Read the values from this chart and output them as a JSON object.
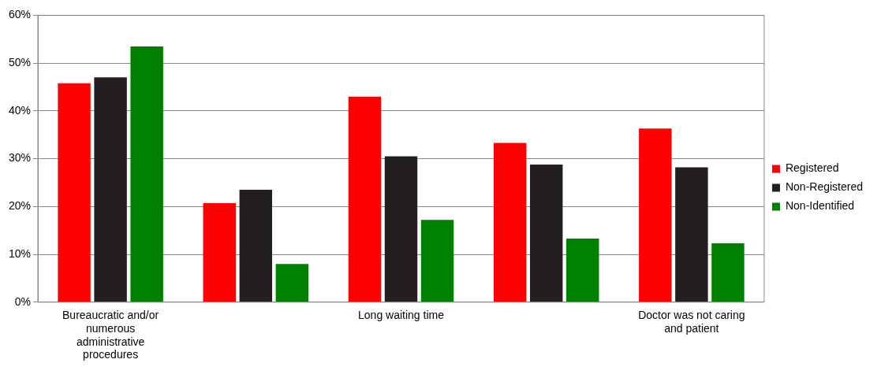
{
  "chart_data": {
    "type": "bar",
    "categories": [
      "Bureaucratic and/or numerous administrative procedures",
      null,
      "Long waiting time",
      null,
      "Doctor was not caring and patient"
    ],
    "series": [
      {
        "name": "Registered",
        "color": "#ff0000",
        "values": [
          45.8,
          20.7,
          43,
          33.3,
          36.3
        ]
      },
      {
        "name": "Non-Registered",
        "color": "#231f20",
        "values": [
          47,
          23.5,
          30.5,
          28.8,
          28.2
        ]
      },
      {
        "name": "Non-Identified",
        "color": "#008000",
        "values": [
          53.5,
          8,
          17.2,
          13.3,
          12.3
        ]
      }
    ],
    "ylim": [
      0,
      60
    ],
    "yticks": [
      {
        "value": 0,
        "label": "0%"
      },
      {
        "value": 10,
        "label": "10%"
      },
      {
        "value": 20,
        "label": "20%"
      },
      {
        "value": 30,
        "label": "30%"
      },
      {
        "value": 40,
        "label": "40%"
      },
      {
        "value": 50,
        "label": "50%"
      },
      {
        "value": 60,
        "label": "60%"
      }
    ],
    "grid": "y",
    "legend": "right"
  }
}
